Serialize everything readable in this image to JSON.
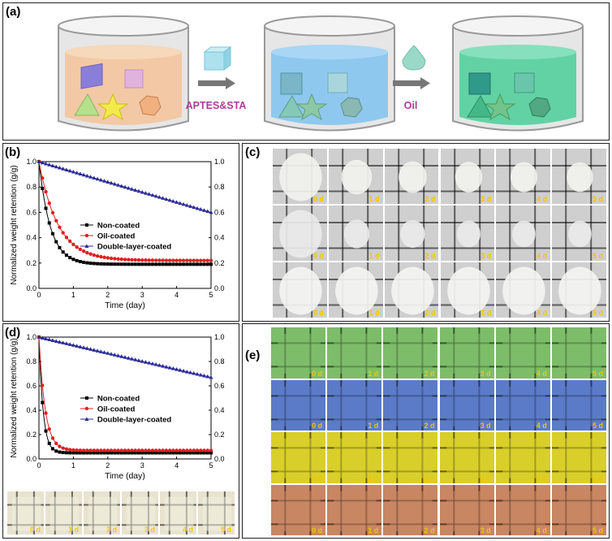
{
  "panels": {
    "a": "(a)",
    "b": "(b)",
    "c": "(c)",
    "d": "(d)",
    "e": "(e)"
  },
  "panel_a": {
    "step1_label": "APTES&STA",
    "step2_label": "Oil"
  },
  "colors": {
    "non": "#000000",
    "oil": "#e02020",
    "dbl": "#2a2a9a",
    "step_label": "#b03a9a",
    "day_label": "#f5c400"
  },
  "chart_data": [
    {
      "id": "b",
      "type": "line",
      "xlabel": "Time (day)",
      "ylabel": "Normalized weight retention (g/g)",
      "xlim": [
        0,
        5
      ],
      "ylim": [
        0,
        1.0
      ],
      "xticks": [
        "0",
        "1",
        "2",
        "3",
        "4",
        "5"
      ],
      "yticks": [
        "0.0",
        "0.2",
        "0.4",
        "0.6",
        "0.8",
        "1.0"
      ],
      "legend_position": "center-right",
      "series": [
        {
          "name": "Non-coated",
          "marker": "square",
          "color": "#000000",
          "y0": 1.0,
          "plateau": 0.19,
          "tau": 0.33,
          "end": 5
        },
        {
          "name": "Oil-coated",
          "marker": "circle",
          "color": "#e02020",
          "y0": 1.0,
          "plateau": 0.22,
          "tau": 0.55,
          "end": 5
        },
        {
          "name": "Double-layer-coated",
          "marker": "triangle",
          "color": "#2a2a9a",
          "y0": 1.0,
          "linear_end": 0.6,
          "end": 5
        }
      ]
    },
    {
      "id": "d",
      "type": "line",
      "xlabel": "Time (day)",
      "ylabel": "Normalized weight retention (g/g)",
      "xlim": [
        0,
        5
      ],
      "ylim": [
        0,
        1.0
      ],
      "xticks": [
        "0",
        "1",
        "2",
        "3",
        "4",
        "5"
      ],
      "yticks": [
        "0.0",
        "0.2",
        "0.4",
        "0.6",
        "0.8",
        "1.0"
      ],
      "legend_position": "center-right",
      "series": [
        {
          "name": "Non-coated",
          "marker": "square",
          "color": "#000000",
          "y0": 1.0,
          "plateau": 0.05,
          "tau": 0.12,
          "end": 5
        },
        {
          "name": "Oil-coated",
          "marker": "circle",
          "color": "#e02020",
          "y0": 1.0,
          "plateau": 0.07,
          "tau": 0.18,
          "end": 5
        },
        {
          "name": "Double-layer-coated",
          "marker": "triangle",
          "color": "#2a2a9a",
          "y0": 1.0,
          "linear_end": 0.67,
          "end": 5
        }
      ]
    }
  ],
  "panel_c": {
    "rows": [
      {
        "tone": "#f2f2ee",
        "labels": [
          "0 d",
          "1 d",
          "2 d",
          "3 d",
          "4 d",
          "5 d"
        ]
      },
      {
        "tone": "#eaeaea",
        "labels": [
          "0 d",
          "1 d",
          "2 d",
          "3 d",
          "4 d",
          "5 d"
        ]
      },
      {
        "tone": "#f4f4f2",
        "labels": [
          "0 d",
          "1 d",
          "2 d",
          "3 d",
          "4 d",
          "5 d"
        ]
      }
    ]
  },
  "panel_d_strip": {
    "labels": [
      "0 d",
      "1 d",
      "2 d",
      "3 d",
      "4 d",
      "5 d"
    ]
  },
  "panel_e": {
    "rows": [
      {
        "color": "#7dbd6a",
        "labels": [
          "0 d",
          "1 d",
          "2 d",
          "3 d",
          "4 d",
          "5 d"
        ]
      },
      {
        "color": "#5b7bc8",
        "labels": [
          "0 d",
          "1 d",
          "2 d",
          "3 d",
          "4 d",
          "5 d"
        ]
      },
      {
        "color": "#d9cf2a",
        "labels": [
          "0 d",
          "1 d",
          "2 d",
          "3 d",
          "4 d",
          "5 d"
        ]
      },
      {
        "color": "#c98662",
        "labels": [
          "0 d",
          "1 d",
          "2 d",
          "3 d",
          "4 d",
          "5 d"
        ]
      }
    ]
  }
}
